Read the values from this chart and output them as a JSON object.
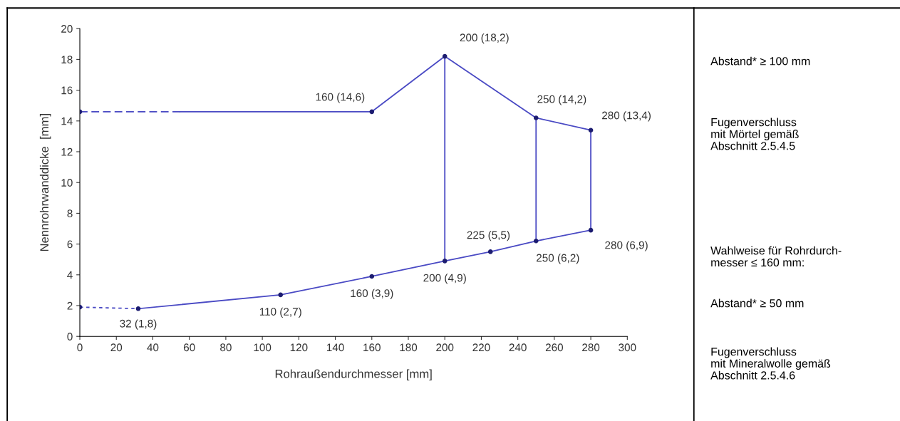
{
  "chart_data": {
    "type": "line",
    "xlabel": "Rohraußendurchmesser [mm]",
    "ylabel": "Nennrohrwanddicke  [mm]",
    "xlim": [
      0,
      300
    ],
    "xticks": [
      0,
      20,
      40,
      60,
      80,
      100,
      120,
      140,
      160,
      180,
      200,
      220,
      240,
      260,
      280,
      300
    ],
    "ylim": [
      0,
      20
    ],
    "yticks": [
      0,
      2,
      4,
      6,
      8,
      10,
      12,
      14,
      16,
      18,
      20
    ],
    "grid": false,
    "marker": "none",
    "line_style": "solid",
    "series": [
      {
        "color": "#4a4ac4",
        "line_style": "dashed",
        "x": [
          0,
          55
        ],
        "values": [
          14.6,
          14.6
        ]
      },
      {
        "color": "#4a4ac4",
        "x": [
          55,
          160,
          200,
          250,
          280
        ],
        "values": [
          14.6,
          14.6,
          18.2,
          14.2,
          13.4
        ]
      },
      {
        "color": "#4a4ac4",
        "line_style": "dotted",
        "x": [
          0,
          32
        ],
        "values": [
          1.9,
          1.8
        ]
      },
      {
        "color": "#4a4ac4",
        "x": [
          32,
          110,
          160,
          200,
          225,
          250,
          280
        ],
        "values": [
          1.8,
          2.7,
          3.9,
          4.9,
          5.5,
          6.2,
          6.9
        ]
      },
      {
        "color": "#4a4ac4",
        "x": [
          200,
          200
        ],
        "values": [
          4.9,
          18.2
        ]
      },
      {
        "color": "#4a4ac4",
        "x": [
          250,
          250
        ],
        "values": [
          6.2,
          14.2
        ]
      },
      {
        "color": "#4a4ac4",
        "x": [
          280,
          280
        ],
        "values": [
          6.9,
          13.4
        ]
      },
      {
        "type": "scatter",
        "marker": "circle",
        "color": "#1c1c70",
        "x": [
          0,
          32,
          110,
          160,
          200,
          225,
          250,
          280,
          0,
          160,
          200,
          250,
          280
        ],
        "values": [
          1.9,
          1.8,
          2.7,
          3.9,
          4.9,
          5.5,
          6.2,
          6.9,
          14.6,
          14.6,
          18.2,
          14.2,
          13.4
        ]
      }
    ],
    "annotations": [
      {
        "text": "32 (1,8)",
        "x": 32,
        "y": 1.8
      },
      {
        "text": "110 (2,7)",
        "x": 110,
        "y": 2.7
      },
      {
        "text": "160 (3,9)",
        "x": 160,
        "y": 3.9
      },
      {
        "text": "200 (4,9)",
        "x": 200,
        "y": 4.9
      },
      {
        "text": "225 (5,5)",
        "x": 225,
        "y": 5.5
      },
      {
        "text": "250 (6,2)",
        "x": 250,
        "y": 6.2
      },
      {
        "text": "280 (6,9)",
        "x": 280,
        "y": 6.9
      },
      {
        "text": "160 (14,6)",
        "x": 160,
        "y": 14.6
      },
      {
        "text": "200 (18,2)",
        "x": 200,
        "y": 18.2
      },
      {
        "text": "250 (14,2)",
        "x": 250,
        "y": 14.2
      },
      {
        "text": "280 (13,4)",
        "x": 280,
        "y": 13.4
      },
      "Abstand* ≥ 100 mm",
      "Fugenverschluss\nmit Mörtel gemäß\nAbschnitt 2.5.4.5",
      "Wahlweise für Rohrdurch-\nmesser ≤ 160 mm:",
      "Abstand* ≥ 50 mm",
      "Fugenverschluss\nmit Mineralwolle gemäß\nAbschnitt 2.5.4.6"
    ]
  }
}
